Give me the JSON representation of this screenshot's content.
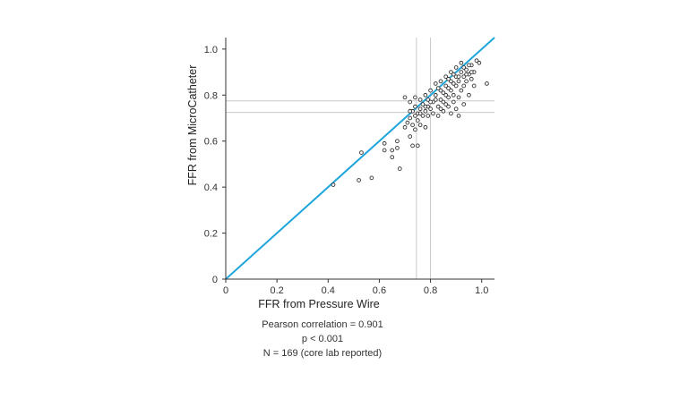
{
  "chart_data": {
    "type": "scatter",
    "xlabel": "FFR from Pressure Wire",
    "ylabel": "FFR from MicroCatheter",
    "xlim": [
      0,
      1.05
    ],
    "ylim": [
      0,
      1.05
    ],
    "xticks": [
      0,
      0.2,
      0.4,
      0.6,
      0.8,
      1.0
    ],
    "xtick_labels": [
      "0",
      "0.2",
      "0.4",
      "0.6",
      "0.8",
      "1.0"
    ],
    "yticks": [
      0,
      0.2,
      0.4,
      0.6,
      0.8,
      1.0
    ],
    "ytick_labels": [
      "0",
      "0.2",
      "0.4",
      "0.6",
      "0.8",
      "1.0"
    ],
    "identity_line": {
      "from": [
        0,
        0
      ],
      "to": [
        1.05,
        1.05
      ],
      "color": "#1ea5dc"
    },
    "reference_lines": {
      "vertical": [
        0.745,
        0.8
      ],
      "horizontal": [
        0.725,
        0.775
      ],
      "color": "#c8c8c8"
    },
    "grid": false,
    "marker_color": "#333333",
    "series": [
      {
        "points": [
          [
            0.42,
            0.41
          ],
          [
            0.52,
            0.43
          ],
          [
            0.53,
            0.55
          ],
          [
            0.57,
            0.44
          ],
          [
            0.62,
            0.56
          ],
          [
            0.62,
            0.59
          ],
          [
            0.65,
            0.53
          ],
          [
            0.65,
            0.56
          ],
          [
            0.67,
            0.57
          ],
          [
            0.67,
            0.6
          ],
          [
            0.68,
            0.48
          ],
          [
            0.7,
            0.66
          ],
          [
            0.72,
            0.62
          ],
          [
            0.73,
            0.58
          ],
          [
            0.75,
            0.58
          ],
          [
            0.71,
            0.68
          ],
          [
            0.72,
            0.7
          ],
          [
            0.73,
            0.67
          ],
          [
            0.74,
            0.65
          ],
          [
            0.75,
            0.69
          ],
          [
            0.76,
            0.67
          ],
          [
            0.78,
            0.66
          ],
          [
            0.73,
            0.73
          ],
          [
            0.74,
            0.75
          ],
          [
            0.75,
            0.72
          ],
          [
            0.76,
            0.74
          ],
          [
            0.77,
            0.76
          ],
          [
            0.77,
            0.71
          ],
          [
            0.78,
            0.73
          ],
          [
            0.79,
            0.75
          ],
          [
            0.79,
            0.78
          ],
          [
            0.8,
            0.74
          ],
          [
            0.81,
            0.72
          ],
          [
            0.81,
            0.77
          ],
          [
            0.82,
            0.8
          ],
          [
            0.83,
            0.71
          ],
          [
            0.83,
            0.75
          ],
          [
            0.84,
            0.78
          ],
          [
            0.84,
            0.82
          ],
          [
            0.85,
            0.73
          ],
          [
            0.85,
            0.77
          ],
          [
            0.86,
            0.8
          ],
          [
            0.86,
            0.84
          ],
          [
            0.87,
            0.75
          ],
          [
            0.87,
            0.79
          ],
          [
            0.88,
            0.82
          ],
          [
            0.88,
            0.86
          ],
          [
            0.89,
            0.77
          ],
          [
            0.89,
            0.8
          ],
          [
            0.9,
            0.84
          ],
          [
            0.9,
            0.88
          ],
          [
            0.91,
            0.71
          ],
          [
            0.91,
            0.79
          ],
          [
            0.91,
            0.86
          ],
          [
            0.92,
            0.82
          ],
          [
            0.92,
            0.9
          ],
          [
            0.93,
            0.84
          ],
          [
            0.93,
            0.88
          ],
          [
            0.94,
            0.86
          ],
          [
            0.94,
            0.91
          ],
          [
            0.95,
            0.8
          ],
          [
            0.95,
            0.89
          ],
          [
            0.96,
            0.87
          ],
          [
            0.96,
            0.93
          ],
          [
            0.97,
            0.9
          ],
          [
            0.98,
            0.95
          ],
          [
            0.99,
            0.94
          ],
          [
            1.02,
            0.85
          ],
          [
            0.97,
            0.84
          ],
          [
            0.93,
            0.76
          ],
          [
            0.9,
            0.74
          ],
          [
            0.88,
            0.72
          ],
          [
            0.86,
            0.88
          ],
          [
            0.84,
            0.86
          ],
          [
            0.82,
            0.85
          ],
          [
            0.8,
            0.82
          ],
          [
            0.78,
            0.8
          ],
          [
            0.76,
            0.78
          ],
          [
            0.74,
            0.79
          ],
          [
            0.72,
            0.77
          ],
          [
            0.7,
            0.79
          ],
          [
            0.79,
            0.71
          ],
          [
            0.82,
            0.78
          ],
          [
            0.85,
            0.81
          ],
          [
            0.87,
            0.83
          ],
          [
            0.89,
            0.85
          ],
          [
            0.91,
            0.88
          ],
          [
            0.93,
            0.92
          ],
          [
            0.95,
            0.93
          ],
          [
            0.92,
            0.94
          ],
          [
            0.9,
            0.92
          ],
          [
            0.88,
            0.9
          ],
          [
            0.86,
            0.76
          ],
          [
            0.84,
            0.74
          ],
          [
            0.8,
            0.77
          ],
          [
            0.78,
            0.75
          ],
          [
            0.76,
            0.72
          ],
          [
            0.74,
            0.71
          ],
          [
            0.72,
            0.73
          ],
          [
            0.83,
            0.83
          ],
          [
            0.87,
            0.87
          ],
          [
            0.89,
            0.89
          ],
          [
            0.94,
            0.89
          ],
          [
            0.96,
            0.9
          ]
        ]
      }
    ]
  },
  "stats": {
    "line1": "Pearson correlation = 0.901",
    "line2": "p < 0.001",
    "line3": "N = 169 (core lab reported)"
  }
}
